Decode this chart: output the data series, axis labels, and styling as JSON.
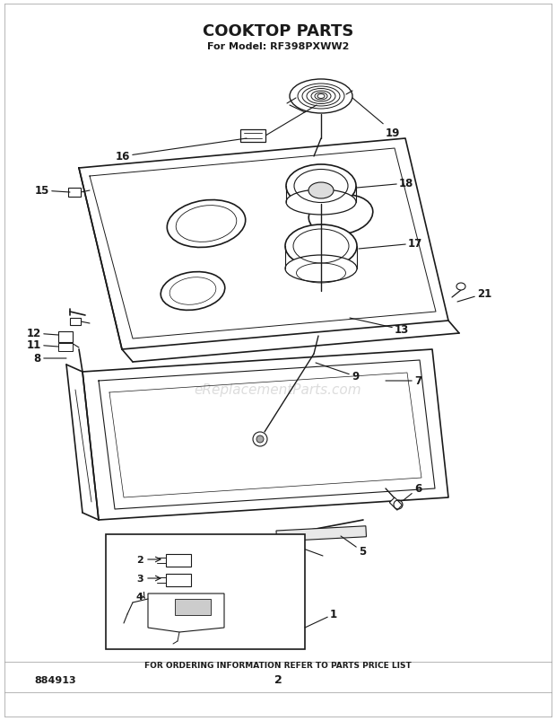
{
  "title": "COOKTOP PARTS",
  "subtitle": "For Model: RF398PXWW2",
  "footer_text": "FOR ORDERING INFORMATION REFER TO PARTS PRICE LIST",
  "part_number": "884913",
  "page_number": "2",
  "watermark": "eReplacementParts.com",
  "bg_color": "#ffffff",
  "line_color": "#1a1a1a",
  "text_color": "#1a1a1a",
  "watermark_color": "#bbbbbb",
  "fig_width": 6.2,
  "fig_height": 8.04,
  "dpi": 100
}
